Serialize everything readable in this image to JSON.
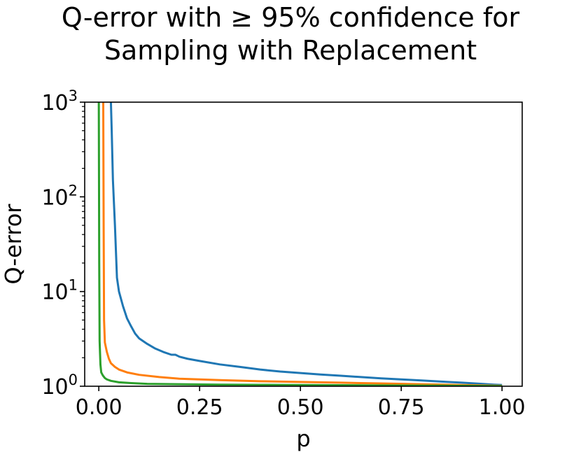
{
  "chart_data": {
    "type": "line",
    "title_lines": [
      "Q-error with ≥ 95% confidence for",
      "Sampling with Replacement"
    ],
    "xlabel": "p",
    "ylabel": "Q-error",
    "xlim": [
      -0.035,
      1.05
    ],
    "ylim": [
      1,
      1000
    ],
    "yscale": "log",
    "x_ticks": [
      0.0,
      0.25,
      0.5,
      0.75,
      1.0
    ],
    "x_tick_labels": [
      "0.00",
      "0.25",
      "0.50",
      "0.75",
      "1.00"
    ],
    "y_ticks": [
      1,
      10,
      100,
      1000
    ],
    "y_tick_labels": [
      {
        "base": "10",
        "exp": "0"
      },
      {
        "base": "10",
        "exp": "1"
      },
      {
        "base": "10",
        "exp": "2"
      },
      {
        "base": "10",
        "exp": "3"
      }
    ],
    "grid": false,
    "legend": "none",
    "series": [
      {
        "color": "#1f77b4",
        "x": [
          0.03,
          0.032,
          0.035,
          0.04,
          0.045,
          0.05,
          0.06,
          0.07,
          0.08,
          0.09,
          0.1,
          0.12,
          0.14,
          0.16,
          0.18,
          0.19,
          0.2,
          0.22,
          0.25,
          0.3,
          0.35,
          0.4,
          0.45,
          0.5,
          0.55,
          0.6,
          0.65,
          0.7,
          0.75,
          0.8,
          0.85,
          0.9,
          0.95,
          0.98,
          1.0
        ],
        "y": [
          1000,
          500,
          150,
          50,
          14,
          10,
          7,
          5.2,
          4.3,
          3.6,
          3.2,
          2.8,
          2.5,
          2.3,
          2.15,
          2.15,
          2.05,
          1.95,
          1.85,
          1.7,
          1.6,
          1.5,
          1.43,
          1.38,
          1.33,
          1.29,
          1.25,
          1.21,
          1.18,
          1.15,
          1.12,
          1.09,
          1.06,
          1.04,
          1.03
        ]
      },
      {
        "color": "#ff7f0e",
        "x": [
          0.011,
          0.012,
          0.013,
          0.015,
          0.02,
          0.025,
          0.03,
          0.04,
          0.05,
          0.07,
          0.1,
          0.15,
          0.2,
          0.3,
          0.4,
          0.5,
          0.6,
          0.7,
          0.8,
          0.9,
          1.0
        ],
        "y": [
          1000,
          50,
          5,
          2.9,
          2.3,
          1.95,
          1.75,
          1.6,
          1.5,
          1.4,
          1.32,
          1.25,
          1.2,
          1.16,
          1.13,
          1.11,
          1.09,
          1.07,
          1.05,
          1.03,
          1.01
        ]
      },
      {
        "color": "#2ca02c",
        "x": [
          0.0,
          0.001,
          0.002,
          0.004,
          0.006,
          0.01,
          0.015,
          0.02,
          0.03,
          0.05,
          0.08,
          0.12,
          0.2,
          0.3,
          0.4,
          0.5,
          0.6,
          0.7,
          0.8,
          0.9,
          1.0
        ],
        "y": [
          1000,
          20,
          3.0,
          1.7,
          1.4,
          1.3,
          1.22,
          1.18,
          1.14,
          1.1,
          1.08,
          1.06,
          1.05,
          1.04,
          1.035,
          1.03,
          1.025,
          1.02,
          1.015,
          1.01,
          1.005
        ]
      }
    ]
  }
}
